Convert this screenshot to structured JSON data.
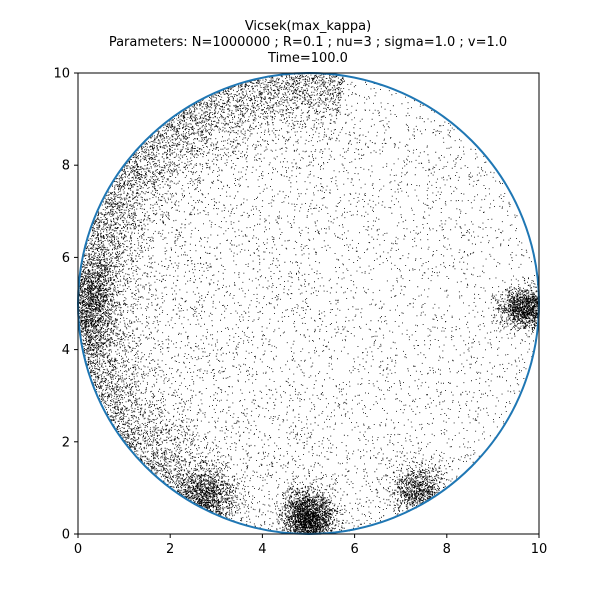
{
  "chart_data": {
    "type": "scatter",
    "title_lines": [
      "Vicsek(max_kappa)",
      "Parameters: N=1000000 ; R=0.1 ; nu=3 ; sigma=1.0 ; v=1.0",
      "Time=100.0"
    ],
    "xlabel": "",
    "ylabel": "",
    "xlim": [
      0,
      10
    ],
    "ylim": [
      0,
      10
    ],
    "xticks": [
      "0",
      "2",
      "4",
      "6",
      "8",
      "10"
    ],
    "yticks": [
      "0",
      "2",
      "4",
      "6",
      "8",
      "10"
    ],
    "grid": false,
    "legend": "none",
    "point_color": "#000000",
    "circle_boundary": {
      "center": [
        5,
        5
      ],
      "radius": 5,
      "color": "#1f77b4"
    },
    "clusters": [
      {
        "label": "right-edge",
        "x": 9.7,
        "y": 4.9
      },
      {
        "label": "bottom-center",
        "x": 5.0,
        "y": 0.35
      },
      {
        "label": "bottom-left",
        "x": 2.8,
        "y": 0.8
      },
      {
        "label": "bottom-right",
        "x": 7.4,
        "y": 0.9
      },
      {
        "label": "left-edge",
        "x": 0.3,
        "y": 5.0
      }
    ]
  }
}
